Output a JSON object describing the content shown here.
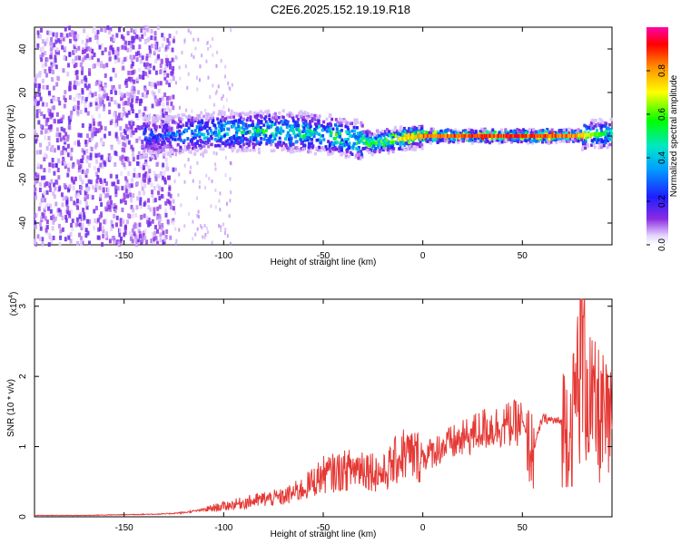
{
  "title": "C2E6.2025.152.19.19.R18",
  "chart_data": [
    {
      "type": "heatmap",
      "xlabel": "Height of straight line (km)",
      "ylabel": "Frequency (Hz)",
      "xlim": [
        -195,
        95
      ],
      "ylim": [
        -50,
        50
      ],
      "xticks": [
        -150,
        -100,
        -50,
        0,
        50
      ],
      "yticks": [
        -40,
        -20,
        0,
        20,
        40
      ],
      "colorbar": {
        "label": "Normalized spectral amplitude",
        "range": [
          0,
          1
        ],
        "ticks": [
          0.0,
          0.2,
          0.4,
          0.6,
          0.8
        ]
      },
      "ridge": {
        "description_values_x": [
          -130,
          -100,
          -75,
          -50,
          -25,
          0,
          25,
          50,
          75,
          90
        ],
        "center_frequency": [
          0,
          2,
          2,
          1,
          -3,
          0,
          0,
          0,
          0,
          1
        ],
        "peak_amplitude": [
          0.3,
          0.5,
          0.55,
          0.55,
          0.6,
          0.9,
          0.95,
          0.95,
          0.9,
          0.6
        ]
      }
    },
    {
      "type": "line",
      "xlabel": "Height of straight line (km)",
      "ylabel": "SNR (10 * v/v)",
      "y_scale_label": "(x10",
      "y_scale_exponent": "4",
      "xlim": [
        -195,
        95
      ],
      "ylim": [
        0,
        3.1
      ],
      "xticks": [
        -150,
        -100,
        -50,
        0,
        50
      ],
      "yticks": [
        0,
        1,
        2,
        3
      ],
      "series": [
        {
          "color": "#e53935",
          "x": [
            -195,
            -170,
            -150,
            -130,
            -120,
            -110,
            -100,
            -90,
            -80,
            -70,
            -60,
            -50,
            -40,
            -30,
            -20,
            -10,
            0,
            10,
            20,
            30,
            40,
            50,
            55,
            60,
            70,
            75,
            80,
            85,
            90,
            95
          ],
          "y": [
            0.02,
            0.02,
            0.03,
            0.04,
            0.06,
            0.1,
            0.15,
            0.2,
            0.25,
            0.28,
            0.4,
            0.6,
            0.65,
            0.72,
            0.6,
            0.9,
            0.85,
            1.0,
            1.1,
            1.25,
            1.3,
            1.35,
            0.9,
            1.4,
            1.35,
            1.3,
            2.5,
            1.5,
            1.4,
            1.2
          ]
        }
      ]
    }
  ]
}
